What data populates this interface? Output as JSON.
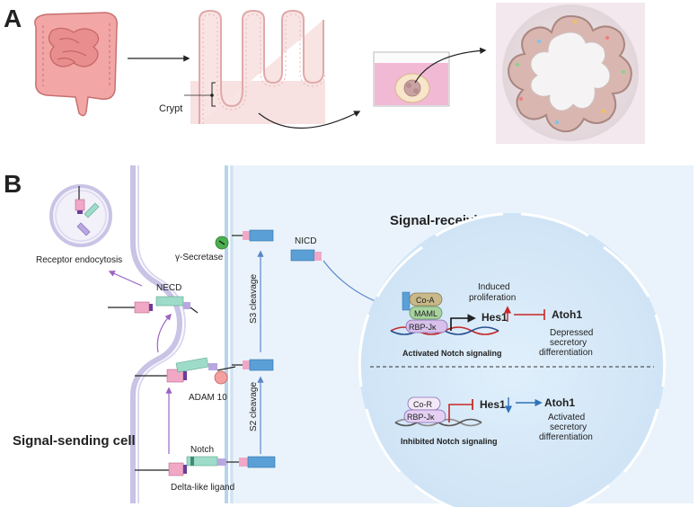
{
  "panel_a": {
    "letter": "A",
    "crypt_label": "Crypt"
  },
  "panel_b": {
    "letter": "B",
    "receiving_title": "Signal-receiving cell",
    "sending_title": "Signal-sending cell",
    "receptor_endocytosis": "Receptor endocytosis",
    "necd": "NECD",
    "gamma_secretase": "γ-Secretase",
    "adam10": "ADAM 10",
    "notch": "Notch",
    "delta_like": "Delta-like ligand",
    "s3_cleavage": "S3 cleavage",
    "s2_cleavage": "S2 cleavage",
    "nicd": "NICD",
    "activated": {
      "co_a": "Co-A",
      "maml": "MAML",
      "rbp": "RBP-Jκ",
      "hes1": "Hes1",
      "induced_1": "Induced",
      "induced_2": "proliferation",
      "atoh1": "Atoh1",
      "depressed_1": "Depressed",
      "depressed_2": "secretory",
      "depressed_3": "differentiation",
      "caption": "Activated Notch signaling"
    },
    "inhibited": {
      "co_r": "Co-R",
      "rbp": "RBP-Jκ",
      "hes1": "Hes1",
      "atoh1": "Atoh1",
      "activated_1": "Activated",
      "activated_2": "secretory",
      "activated_3": "differentiation",
      "caption": "Inhibited Notch signaling"
    }
  },
  "colors": {
    "hes1_red": "#c62828",
    "atoh1_red": "#d93a3a",
    "hes1_blue": "#2f72b8",
    "title_blue": "#2e5b86",
    "title_purple": "#6a3e9a",
    "arrow_purple": "#9b63c4",
    "arrow_blue": "#5a86c8"
  }
}
